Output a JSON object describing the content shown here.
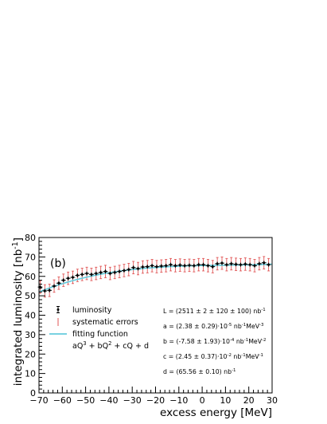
{
  "chart_data": {
    "type": "scatter",
    "title": "",
    "panel_label": "(b)",
    "xlabel": "excess energy [MeV]",
    "ylabel": "integrated luminosity [nb⁻¹]",
    "xlim": [
      -70,
      30
    ],
    "ylim": [
      0,
      80
    ],
    "grid": false,
    "legend_position": "lower-left",
    "x_ticks": [
      "−70",
      "−60",
      "−50",
      "−40",
      "−30",
      "−20",
      "−10",
      "0",
      "10",
      "20",
      "30"
    ],
    "y_ticks": [
      "0",
      "10",
      "20",
      "30",
      "40",
      "50",
      "60",
      "70",
      "80"
    ],
    "legend": [
      {
        "label": "luminosity",
        "marker": "black-point-with-error-bar"
      },
      {
        "label": "systematic errors",
        "marker": "red-error-bar"
      },
      {
        "label": "fitting function",
        "marker": "cyan-line",
        "formula": "aQ³ + bQ² + cQ + d"
      }
    ],
    "annotations": [
      "L = (2511 ± 2 ± 120 ± 100) nb⁻¹",
      "a = (2.38 ± 0.29)·10⁻⁵ nb⁻¹MeV⁻³",
      "b = (-7.58 ± 1.93)·10⁻⁴ nb⁻¹MeV⁻²",
      "c = (2.45 ± 0.37)·10⁻² nb⁻¹MeV⁻¹",
      "d = (65.56 ± 0.10) nb⁻¹"
    ],
    "fit": {
      "a": 2.38e-05,
      "b": -0.000758,
      "c": 0.0245,
      "d": 65.56
    },
    "series": [
      {
        "name": "luminosity",
        "x": [
          -69.5,
          -67.5,
          -65.5,
          -63.5,
          -61.5,
          -59.5,
          -57.5,
          -55.5,
          -53.5,
          -51.5,
          -49.5,
          -47.5,
          -45.5,
          -43.5,
          -41.5,
          -39.5,
          -37.5,
          -35.5,
          -33.5,
          -31.5,
          -29.5,
          -27.5,
          -25.5,
          -23.5,
          -21.5,
          -19.5,
          -17.5,
          -15.5,
          -13.5,
          -11.5,
          -9.5,
          -7.5,
          -5.5,
          -3.5,
          -1.5,
          0.5,
          2.5,
          4.5,
          6.5,
          8.5,
          10.5,
          12.5,
          14.5,
          16.5,
          18.5,
          20.5,
          22.5,
          24.5,
          26.5,
          28.5
        ],
        "y": [
          54.5,
          52.5,
          52.8,
          55.0,
          56.5,
          58.0,
          59.0,
          59.5,
          60.5,
          61.0,
          61.5,
          61.0,
          61.5,
          62.0,
          62.5,
          61.5,
          62.0,
          62.5,
          63.0,
          63.5,
          64.5,
          64.0,
          64.8,
          65.0,
          65.5,
          65.0,
          65.3,
          65.5,
          66.0,
          65.5,
          65.8,
          65.5,
          65.7,
          65.5,
          66.0,
          66.0,
          65.5,
          65.0,
          66.5,
          66.8,
          66.0,
          66.5,
          66.2,
          66.0,
          66.3,
          66.0,
          65.5,
          66.5,
          67.0,
          66.0
        ],
        "stat_error": 1.0,
        "sys_error": 3.2
      }
    ]
  }
}
